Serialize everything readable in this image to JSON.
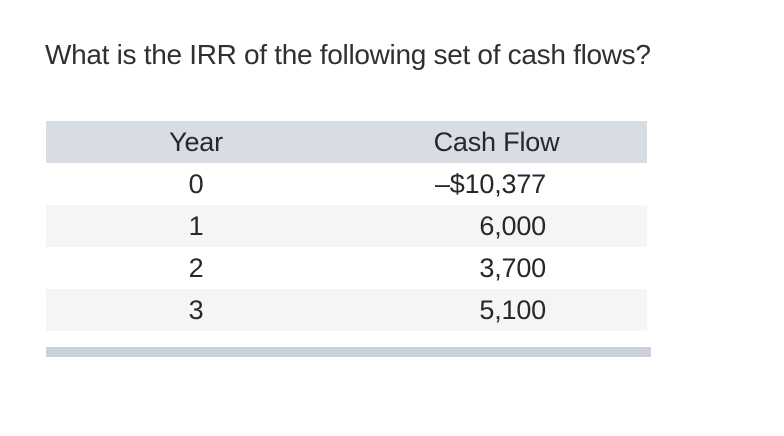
{
  "question": "What is the IRR of the following set of cash flows?",
  "table": {
    "headers": [
      "Year",
      "Cash Flow"
    ],
    "rows": [
      {
        "year": "0",
        "cash_flow": "–$10,377"
      },
      {
        "year": "1",
        "cash_flow": "6,000"
      },
      {
        "year": "2",
        "cash_flow": "3,700"
      },
      {
        "year": "3",
        "cash_flow": "5,100"
      }
    ]
  },
  "colors": {
    "header_background": "#d8dce4",
    "alternate_row_background": "#f5f5f6",
    "scrollbar_bar": "#ccd2dd",
    "text": "#26282b",
    "question_text": "#2e3134"
  }
}
